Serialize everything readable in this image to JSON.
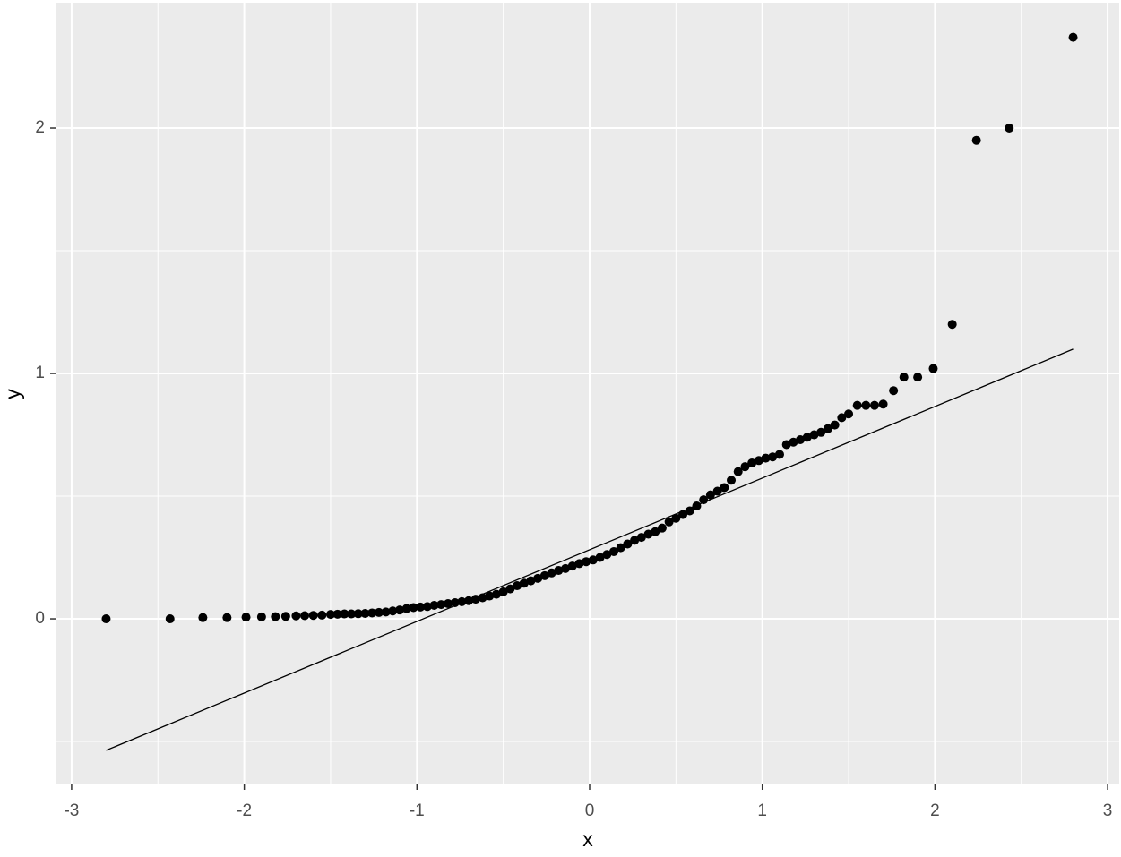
{
  "chart_data": {
    "type": "scatter",
    "xlabel": "x",
    "ylabel": "y",
    "xlim": [
      -3.093,
      3.067
    ],
    "ylim": [
      -0.675,
      2.511
    ],
    "xticks": [
      -3,
      -2,
      -1,
      0,
      1,
      2,
      3
    ],
    "yticks": [
      0,
      1,
      2
    ],
    "xminor": [
      -2.5,
      -1.5,
      -0.5,
      0.5,
      1.5,
      2.5
    ],
    "yminor": [
      -0.5,
      0.5,
      1.5
    ],
    "grid": true,
    "color": "#000000",
    "background": "#ebebeb",
    "x": [
      -2.8,
      -2.43,
      -2.24,
      -2.1,
      -1.99,
      -1.9,
      -1.82,
      -1.76,
      -1.7,
      -1.65,
      -1.6,
      -1.55,
      -1.5,
      -1.46,
      -1.42,
      -1.38,
      -1.34,
      -1.3,
      -1.26,
      -1.22,
      -1.18,
      -1.14,
      -1.1,
      -1.06,
      -1.02,
      -0.98,
      -0.94,
      -0.9,
      -0.86,
      -0.82,
      -0.78,
      -0.74,
      -0.7,
      -0.66,
      -0.62,
      -0.58,
      -0.54,
      -0.5,
      -0.46,
      -0.42,
      -0.38,
      -0.34,
      -0.3,
      -0.26,
      -0.22,
      -0.18,
      -0.14,
      -0.1,
      -0.06,
      -0.02,
      0.02,
      0.06,
      0.1,
      0.14,
      0.18,
      0.22,
      0.26,
      0.3,
      0.34,
      0.38,
      0.42,
      0.46,
      0.5,
      0.54,
      0.58,
      0.62,
      0.66,
      0.7,
      0.74,
      0.78,
      0.82,
      0.86,
      0.9,
      0.94,
      0.98,
      1.02,
      1.06,
      1.1,
      1.14,
      1.18,
      1.22,
      1.26,
      1.3,
      1.34,
      1.38,
      1.42,
      1.46,
      1.5,
      1.55,
      1.6,
      1.65,
      1.7,
      1.76,
      1.82,
      1.9,
      1.99,
      2.1,
      2.24,
      2.43,
      2.8
    ],
    "values": [
      0,
      0,
      0.005,
      0.005,
      0.007,
      0.008,
      0.009,
      0.01,
      0.012,
      0.013,
      0.014,
      0.015,
      0.018,
      0.019,
      0.02,
      0.02,
      0.021,
      0.022,
      0.024,
      0.026,
      0.028,
      0.032,
      0.036,
      0.042,
      0.046,
      0.048,
      0.05,
      0.055,
      0.058,
      0.062,
      0.066,
      0.07,
      0.074,
      0.08,
      0.086,
      0.093,
      0.1,
      0.11,
      0.122,
      0.135,
      0.145,
      0.155,
      0.165,
      0.176,
      0.187,
      0.197,
      0.205,
      0.215,
      0.225,
      0.233,
      0.24,
      0.25,
      0.262,
      0.274,
      0.29,
      0.305,
      0.32,
      0.332,
      0.345,
      0.355,
      0.37,
      0.395,
      0.41,
      0.425,
      0.44,
      0.46,
      0.485,
      0.505,
      0.52,
      0.535,
      0.565,
      0.6,
      0.62,
      0.635,
      0.645,
      0.655,
      0.66,
      0.67,
      0.71,
      0.72,
      0.73,
      0.74,
      0.75,
      0.76,
      0.775,
      0.79,
      0.82,
      0.835,
      0.87,
      0.87,
      0.87,
      0.875,
      0.93,
      0.985,
      0.985,
      1.02,
      1.2,
      1.95,
      2.0,
      2.37
    ],
    "reference_line": {
      "x": [
        -2.8,
        2.8
      ],
      "y": [
        -0.536,
        1.099
      ]
    }
  }
}
